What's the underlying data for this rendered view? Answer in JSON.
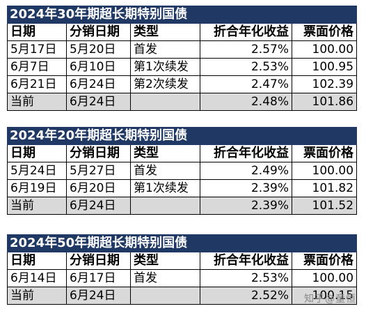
{
  "tables": [
    {
      "title": "2024年30年期超长期特别国债",
      "headers": [
        "日期",
        "分销日期",
        "类型",
        "折合年化收益",
        "票面价格"
      ],
      "rows": [
        {
          "date": "5月17日",
          "dist": "5月20日",
          "type": "首发",
          "yield": "2.57%",
          "price": "100.00"
        },
        {
          "date": "6月7日",
          "dist": "6月10日",
          "type": "第1次续发",
          "yield": "2.53%",
          "price": "100.95"
        },
        {
          "date": "6月21日",
          "dist": "6月24日",
          "type": "第2次续发",
          "yield": "2.47%",
          "price": "102.39"
        }
      ],
      "current": {
        "date": "当前",
        "dist": "6月24日",
        "type": "",
        "yield": "2.48%",
        "price": "101.86"
      }
    },
    {
      "title": "2024年20年期超长期特别国债",
      "headers": [
        "日期",
        "分销日期",
        "类型",
        "折合年化收益",
        "票面价格"
      ],
      "rows": [
        {
          "date": "5月24日",
          "dist": "5月27日",
          "type": "首发",
          "yield": "2.49%",
          "price": "100.00"
        },
        {
          "date": "6月19日",
          "dist": "6月20日",
          "type": "第1次续发",
          "yield": "2.39%",
          "price": "101.82"
        }
      ],
      "current": {
        "date": "当前",
        "dist": "6月24日",
        "type": "",
        "yield": "2.39%",
        "price": "101.52"
      }
    },
    {
      "title": "2024年50年期超长期特别国债",
      "headers": [
        "日期",
        "分销日期",
        "类型",
        "折合年化收益",
        "票面价格"
      ],
      "rows": [
        {
          "date": "6月14日",
          "dist": "6月17日",
          "type": "首发",
          "yield": "2.53%",
          "price": "100.00"
        }
      ],
      "current": {
        "date": "当前",
        "dist": "6月24日",
        "type": "",
        "yield": "2.52%",
        "price": "100.15"
      }
    }
  ],
  "watermark": "知乎@童恒"
}
